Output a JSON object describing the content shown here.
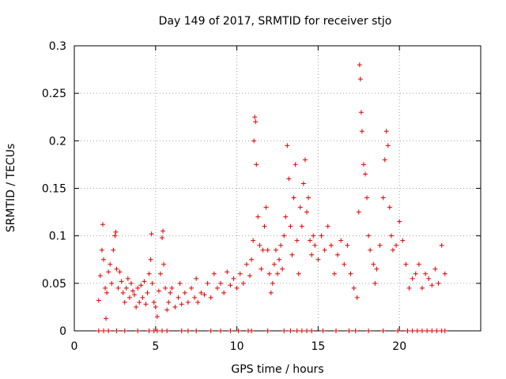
{
  "chart_data": {
    "type": "scatter",
    "title": "Day 149 of 2017, SRMTID for receiver stjo",
    "xlabel": "GPS time / hours",
    "ylabel": "SRMTID / TECUs",
    "xlim": [
      0,
      25
    ],
    "ylim": [
      0,
      0.3
    ],
    "xticks": [
      0,
      5,
      10,
      15,
      20
    ],
    "yticks": [
      0,
      0.05,
      0.1,
      0.15,
      0.2,
      0.25,
      0.3
    ],
    "xtick_labels": [
      "0",
      "5",
      "10",
      "15",
      "20"
    ],
    "ytick_labels": [
      "0",
      "0.05",
      "0.1",
      "0.15",
      "0.2",
      "0.25",
      "0.3"
    ],
    "grid": true,
    "marker": "+",
    "color": "#e00000",
    "series": [
      {
        "name": "SRMTID",
        "points": [
          [
            1.5,
            0.032
          ],
          [
            1.6,
            0.058
          ],
          [
            1.7,
            0.085
          ],
          [
            1.75,
            0.112
          ],
          [
            1.8,
            0.075
          ],
          [
            1.9,
            0.045
          ],
          [
            1.95,
            0.013
          ],
          [
            2.0,
            0.04
          ],
          [
            2.1,
            0.062
          ],
          [
            2.2,
            0.07
          ],
          [
            2.3,
            0.05
          ],
          [
            2.4,
            0.085
          ],
          [
            2.5,
            0.1
          ],
          [
            2.55,
            0.104
          ],
          [
            2.6,
            0.065
          ],
          [
            2.7,
            0.045
          ],
          [
            2.8,
            0.062
          ],
          [
            2.9,
            0.052
          ],
          [
            3.0,
            0.04
          ],
          [
            3.1,
            0.03
          ],
          [
            3.2,
            0.045
          ],
          [
            3.3,
            0.055
          ],
          [
            3.4,
            0.035
          ],
          [
            3.5,
            0.05
          ],
          [
            3.6,
            0.042
          ],
          [
            3.7,
            0.038
          ],
          [
            3.8,
            0.025
          ],
          [
            3.9,
            0.045
          ],
          [
            4.0,
            0.03
          ],
          [
            4.1,
            0.048
          ],
          [
            4.2,
            0.035
          ],
          [
            4.3,
            0.052
          ],
          [
            4.4,
            0.028
          ],
          [
            4.5,
            0.04
          ],
          [
            4.6,
            0.06
          ],
          [
            4.7,
            0.075
          ],
          [
            4.75,
            0.102
          ],
          [
            4.8,
            0.05
          ],
          [
            4.9,
            0.03
          ],
          [
            5.0,
            0.025
          ],
          [
            5.1,
            0.015
          ],
          [
            5.2,
            0.042
          ],
          [
            5.3,
            0.06
          ],
          [
            5.4,
            0.098
          ],
          [
            5.45,
            0.105
          ],
          [
            5.5,
            0.07
          ],
          [
            5.6,
            0.045
          ],
          [
            5.7,
            0.022
          ],
          [
            5.8,
            0.03
          ],
          [
            5.9,
            0.04
          ],
          [
            6.0,
            0.045
          ],
          [
            6.2,
            0.025
          ],
          [
            6.4,
            0.035
          ],
          [
            6.5,
            0.05
          ],
          [
            6.6,
            0.028
          ],
          [
            6.8,
            0.04
          ],
          [
            7.0,
            0.03
          ],
          [
            7.2,
            0.045
          ],
          [
            7.4,
            0.035
          ],
          [
            7.5,
            0.055
          ],
          [
            7.6,
            0.03
          ],
          [
            7.8,
            0.04
          ],
          [
            8.0,
            0.038
          ],
          [
            8.2,
            0.05
          ],
          [
            8.4,
            0.035
          ],
          [
            8.6,
            0.06
          ],
          [
            8.8,
            0.045
          ],
          [
            9.0,
            0.05
          ],
          [
            9.2,
            0.04
          ],
          [
            9.4,
            0.062
          ],
          [
            9.6,
            0.048
          ],
          [
            9.8,
            0.055
          ],
          [
            10.0,
            0.045
          ],
          [
            10.2,
            0.06
          ],
          [
            10.4,
            0.05
          ],
          [
            10.6,
            0.07
          ],
          [
            10.8,
            0.058
          ],
          [
            10.9,
            0.075
          ],
          [
            11.0,
            0.095
          ],
          [
            11.05,
            0.2
          ],
          [
            11.1,
            0.225
          ],
          [
            11.15,
            0.22
          ],
          [
            11.2,
            0.175
          ],
          [
            11.3,
            0.12
          ],
          [
            11.4,
            0.09
          ],
          [
            11.5,
            0.065
          ],
          [
            11.6,
            0.085
          ],
          [
            11.7,
            0.11
          ],
          [
            11.8,
            0.13
          ],
          [
            11.9,
            0.085
          ],
          [
            12.0,
            0.06
          ],
          [
            12.1,
            0.04
          ],
          [
            12.2,
            0.05
          ],
          [
            12.3,
            0.07
          ],
          [
            12.4,
            0.085
          ],
          [
            12.5,
            0.06
          ],
          [
            12.6,
            0.075
          ],
          [
            12.7,
            0.09
          ],
          [
            12.8,
            0.065
          ],
          [
            12.9,
            0.1
          ],
          [
            13.0,
            0.12
          ],
          [
            13.1,
            0.195
          ],
          [
            13.2,
            0.16
          ],
          [
            13.3,
            0.11
          ],
          [
            13.4,
            0.08
          ],
          [
            13.5,
            0.14
          ],
          [
            13.6,
            0.175
          ],
          [
            13.7,
            0.095
          ],
          [
            13.8,
            0.06
          ],
          [
            13.9,
            0.13
          ],
          [
            14.0,
            0.11
          ],
          [
            14.1,
            0.155
          ],
          [
            14.2,
            0.18
          ],
          [
            14.3,
            0.125
          ],
          [
            14.4,
            0.14
          ],
          [
            14.5,
            0.095
          ],
          [
            14.6,
            0.08
          ],
          [
            14.7,
            0.1
          ],
          [
            14.8,
            0.09
          ],
          [
            15.0,
            0.075
          ],
          [
            15.2,
            0.1
          ],
          [
            15.4,
            0.085
          ],
          [
            15.6,
            0.11
          ],
          [
            15.8,
            0.09
          ],
          [
            16.0,
            0.06
          ],
          [
            16.2,
            0.08
          ],
          [
            16.4,
            0.095
          ],
          [
            16.6,
            0.07
          ],
          [
            16.8,
            0.09
          ],
          [
            17.0,
            0.06
          ],
          [
            17.2,
            0.045
          ],
          [
            17.4,
            0.035
          ],
          [
            17.5,
            0.125
          ],
          [
            17.55,
            0.28
          ],
          [
            17.6,
            0.265
          ],
          [
            17.65,
            0.23
          ],
          [
            17.7,
            0.21
          ],
          [
            17.8,
            0.175
          ],
          [
            17.9,
            0.165
          ],
          [
            18.0,
            0.14
          ],
          [
            18.1,
            0.1
          ],
          [
            18.2,
            0.085
          ],
          [
            18.4,
            0.07
          ],
          [
            18.5,
            0.05
          ],
          [
            18.6,
            0.065
          ],
          [
            18.8,
            0.09
          ],
          [
            19.0,
            0.14
          ],
          [
            19.1,
            0.18
          ],
          [
            19.2,
            0.21
          ],
          [
            19.3,
            0.195
          ],
          [
            19.4,
            0.13
          ],
          [
            19.5,
            0.1
          ],
          [
            19.6,
            0.085
          ],
          [
            19.8,
            0.09
          ],
          [
            20.0,
            0.115
          ],
          [
            20.2,
            0.095
          ],
          [
            20.4,
            0.07
          ],
          [
            20.6,
            0.045
          ],
          [
            20.8,
            0.055
          ],
          [
            21.0,
            0.06
          ],
          [
            21.2,
            0.07
          ],
          [
            21.4,
            0.045
          ],
          [
            21.6,
            0.06
          ],
          [
            21.8,
            0.055
          ],
          [
            22.0,
            0.048
          ],
          [
            22.2,
            0.065
          ],
          [
            22.4,
            0.05
          ],
          [
            22.6,
            0.09
          ],
          [
            22.8,
            0.06
          ]
        ]
      }
    ],
    "zero_points_x": [
      1.5,
      1.8,
      2.1,
      2.6,
      3.1,
      3.9,
      4.6,
      4.9,
      5.1,
      5.4,
      5.7,
      6.6,
      7.0,
      7.5,
      8.4,
      9.0,
      9.6,
      10.1,
      10.7,
      10.9,
      11.9,
      12.9,
      13.3,
      13.7,
      14.0,
      14.3,
      14.6,
      15.3,
      16.1,
      16.9,
      17.3,
      18.1,
      19.0,
      19.9,
      20.5,
      20.8,
      21.1,
      21.4,
      21.7,
      22.0,
      22.3,
      22.6,
      22.8
    ]
  }
}
